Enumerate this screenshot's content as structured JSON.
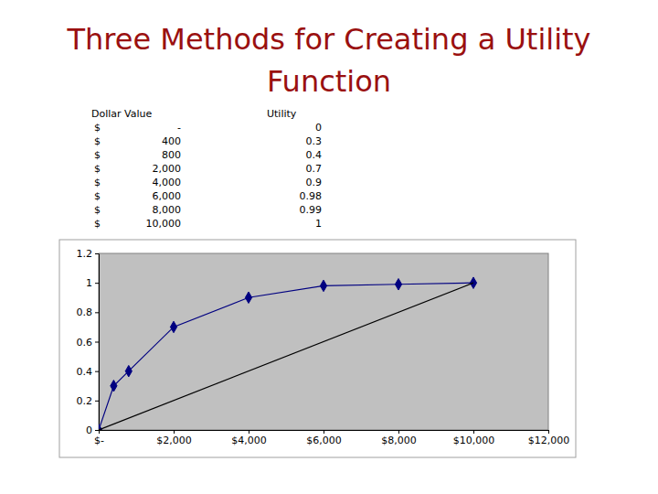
{
  "title": "Three Methods for Creating a Utility Function",
  "table": {
    "columns": [
      "Dollar Value",
      "Utility"
    ],
    "rows": [
      [
        "$",
        "-",
        0
      ],
      [
        "$",
        "400",
        0.3
      ],
      [
        "$",
        "800",
        0.4
      ],
      [
        "$",
        "2,000",
        0.7
      ],
      [
        "$",
        "4,000",
        0.9
      ],
      [
        "$",
        "6,000",
        0.98
      ],
      [
        "$",
        "8,000",
        0.99
      ],
      [
        "$",
        "10,000",
        1
      ]
    ]
  },
  "chart_data": {
    "type": "line",
    "x": [
      0,
      400,
      800,
      2000,
      4000,
      6000,
      8000,
      10000
    ],
    "series": [
      {
        "color": "#000080",
        "marker": "diamond",
        "line_style": "solid",
        "values": [
          0,
          0.3,
          0.4,
          0.7,
          0.9,
          0.98,
          0.99,
          1
        ]
      },
      {
        "color": "#000000",
        "marker": "none",
        "line_style": "solid",
        "x": [
          0,
          10000
        ],
        "values": [
          0,
          1
        ]
      }
    ],
    "xlim": [
      0,
      12000
    ],
    "xticks": [
      {
        "value": 0,
        "label": "$-"
      },
      {
        "value": 2000,
        "label": "$2,000"
      },
      {
        "value": 4000,
        "label": "$4,000"
      },
      {
        "value": 6000,
        "label": "$6,000"
      },
      {
        "value": 8000,
        "label": "$8,000"
      },
      {
        "value": 10000,
        "label": "$10,000"
      },
      {
        "value": 12000,
        "label": "$12,000"
      }
    ],
    "ylim": [
      0,
      1.2
    ],
    "yticks": [
      0,
      0.2,
      0.4,
      0.6,
      0.8,
      1,
      1.2
    ],
    "grid": false
  }
}
